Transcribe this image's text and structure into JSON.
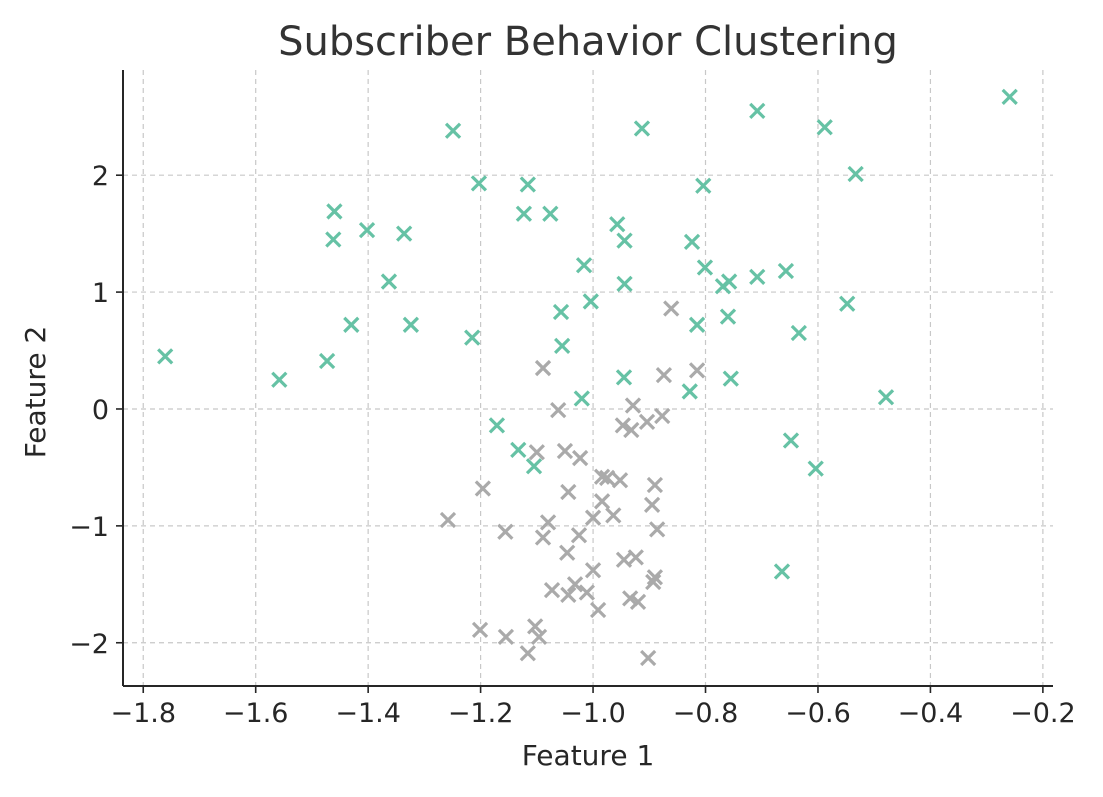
{
  "chart_data": {
    "type": "scatter",
    "title": "Subscriber Behavior Clustering",
    "xlabel": "Feature 1",
    "ylabel": "Feature 2",
    "xlim": [
      -1.836,
      -0.182
    ],
    "ylim": [
      -2.37,
      2.9
    ],
    "xticks": [
      -1.8,
      -1.6,
      -1.4,
      -1.2,
      -1.0,
      -0.8,
      -0.6,
      -0.4,
      -0.2
    ],
    "xtick_labels": [
      "−1.8",
      "−1.6",
      "−1.4",
      "−1.2",
      "−1.0",
      "−0.8",
      "−0.6",
      "−0.4",
      "−0.2"
    ],
    "yticks": [
      -2,
      -1,
      0,
      1,
      2
    ],
    "ytick_labels": [
      "−2",
      "−1",
      "0",
      "1",
      "2"
    ],
    "grid": true,
    "marker": "x",
    "series": [
      {
        "color": "#66c2a5",
        "points": [
          [
            -1.761,
            0.45
          ],
          [
            -1.558,
            0.25
          ],
          [
            -1.473,
            0.41
          ],
          [
            -1.462,
            1.45
          ],
          [
            -1.46,
            1.69
          ],
          [
            -1.43,
            0.72
          ],
          [
            -1.402,
            1.53
          ],
          [
            -1.363,
            1.09
          ],
          [
            -1.336,
            1.5
          ],
          [
            -1.324,
            0.72
          ],
          [
            -1.249,
            2.38
          ],
          [
            -1.215,
            0.61
          ],
          [
            -1.203,
            1.93
          ],
          [
            -1.171,
            -0.14
          ],
          [
            -1.133,
            -0.35
          ],
          [
            -1.123,
            1.67
          ],
          [
            -1.116,
            1.92
          ],
          [
            -1.105,
            -0.49
          ],
          [
            -1.076,
            1.67
          ],
          [
            -1.057,
            0.83
          ],
          [
            -1.055,
            0.54
          ],
          [
            -1.02,
            0.09
          ],
          [
            -1.016,
            1.23
          ],
          [
            -1.004,
            0.92
          ],
          [
            -0.957,
            1.58
          ],
          [
            -0.945,
            0.27
          ],
          [
            -0.944,
            1.44
          ],
          [
            -0.944,
            1.07
          ],
          [
            -0.913,
            2.4
          ],
          [
            -0.828,
            0.15
          ],
          [
            -0.824,
            1.43
          ],
          [
            -0.815,
            0.72
          ],
          [
            -0.804,
            1.91
          ],
          [
            -0.801,
            1.21
          ],
          [
            -0.769,
            1.05
          ],
          [
            -0.758,
            1.09
          ],
          [
            -0.76,
            0.79
          ],
          [
            -0.755,
            0.26
          ],
          [
            -0.708,
            2.55
          ],
          [
            -0.708,
            1.13
          ],
          [
            -0.657,
            1.18
          ],
          [
            -0.648,
            -0.27
          ],
          [
            -0.664,
            -1.39
          ],
          [
            -0.634,
            0.65
          ],
          [
            -0.604,
            -0.51
          ],
          [
            -0.588,
            2.41
          ],
          [
            -0.548,
            0.9
          ],
          [
            -0.533,
            2.01
          ],
          [
            -0.479,
            0.1
          ],
          [
            -0.259,
            2.67
          ]
        ]
      },
      {
        "color": "#aaaaaa",
        "points": [
          [
            -1.089,
            0.35
          ],
          [
            -0.861,
            0.86
          ],
          [
            -0.874,
            0.29
          ],
          [
            -0.815,
            0.33
          ],
          [
            -1.062,
            -0.01
          ],
          [
            -0.929,
            0.03
          ],
          [
            -0.947,
            -0.14
          ],
          [
            -0.932,
            -0.18
          ],
          [
            -0.904,
            -0.11
          ],
          [
            -0.877,
            -0.06
          ],
          [
            -1.1,
            -0.37
          ],
          [
            -1.05,
            -0.36
          ],
          [
            -1.023,
            -0.42
          ],
          [
            -1.196,
            -0.68
          ],
          [
            -1.044,
            -0.71
          ],
          [
            -0.984,
            -0.58
          ],
          [
            -0.975,
            -0.59
          ],
          [
            -0.952,
            -0.61
          ],
          [
            -0.89,
            -0.65
          ],
          [
            -0.895,
            -0.82
          ],
          [
            -0.984,
            -0.79
          ],
          [
            -0.964,
            -0.91
          ],
          [
            -1.0,
            -0.93
          ],
          [
            -1.258,
            -0.95
          ],
          [
            -1.156,
            -1.05
          ],
          [
            -1.08,
            -0.97
          ],
          [
            -1.089,
            -1.1
          ],
          [
            -1.025,
            -1.08
          ],
          [
            -0.886,
            -1.03
          ],
          [
            -1.046,
            -1.23
          ],
          [
            -1.0,
            -1.38
          ],
          [
            -0.945,
            -1.29
          ],
          [
            -0.924,
            -1.27
          ],
          [
            -0.89,
            -1.44
          ],
          [
            -0.893,
            -1.48
          ],
          [
            -1.073,
            -1.55
          ],
          [
            -1.044,
            -1.59
          ],
          [
            -1.032,
            -1.5
          ],
          [
            -1.011,
            -1.57
          ],
          [
            -0.991,
            -1.72
          ],
          [
            -0.934,
            -1.62
          ],
          [
            -0.92,
            -1.65
          ],
          [
            -1.201,
            -1.89
          ],
          [
            -1.155,
            -1.95
          ],
          [
            -1.103,
            -1.86
          ],
          [
            -1.096,
            -1.95
          ],
          [
            -1.116,
            -2.09
          ],
          [
            -0.902,
            -2.13
          ]
        ]
      }
    ]
  }
}
